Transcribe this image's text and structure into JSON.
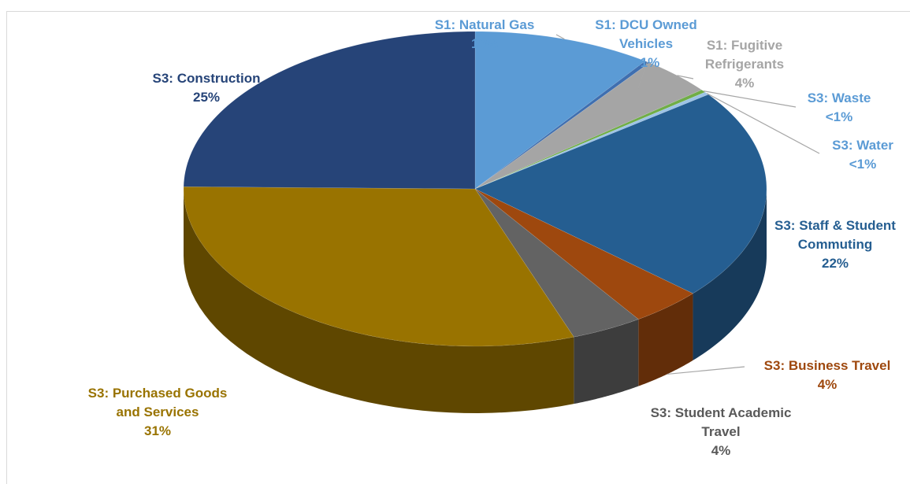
{
  "chart_data": {
    "type": "pie3d",
    "categories": [
      "S1: Natural Gas",
      "S1: DCU Owned Vehicles",
      "S1: Fugitive Refrigerants",
      "S3: Waste",
      "S3: Water",
      "S3: Staff & Student Commuting",
      "S3: Business Travel",
      "S3: Student Academic Travel",
      "S3: Purchased Goods and Services",
      "S3: Construction"
    ],
    "values": [
      10,
      0.3,
      4,
      0.3,
      0.3,
      22,
      4,
      4,
      31,
      25
    ],
    "value_labels": [
      "10%",
      "<1%",
      "4%",
      "<1%",
      "<1%",
      "22%",
      "4%",
      "4%",
      "31%",
      "25%"
    ],
    "colors": [
      "#5B9BD5",
      "#3F6FB0",
      "#A5A5A5",
      "#70AD47",
      "#9DC3E6",
      "#255E91",
      "#9E480E",
      "#636363",
      "#997300",
      "#264478"
    ]
  }
}
